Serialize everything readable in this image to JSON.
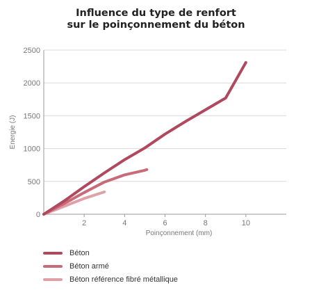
{
  "chart_data": {
    "type": "line",
    "title_lines": [
      "Influence du type de renfort",
      "sur le poinçonnement du béton"
    ],
    "xlabel": "Poinçonnement (mm)",
    "ylabel": "Energie (J)",
    "xlim": [
      0,
      12
    ],
    "ylim": [
      0,
      2500
    ],
    "xticks": [
      2,
      4,
      6,
      8,
      10
    ],
    "yticks": [
      0,
      500,
      1000,
      1500,
      2000,
      2500
    ],
    "grid": {
      "horizontal": true,
      "vertical": false
    },
    "legend_position": "bottom-left",
    "series": [
      {
        "name": "Béton",
        "color": "#b0495e",
        "points": [
          [
            0,
            0
          ],
          [
            1,
            200
          ],
          [
            2,
            420
          ],
          [
            3,
            630
          ],
          [
            4,
            830
          ],
          [
            5,
            1010
          ],
          [
            6,
            1220
          ],
          [
            7,
            1410
          ],
          [
            8,
            1590
          ],
          [
            9,
            1770
          ],
          [
            10,
            2310
          ]
        ]
      },
      {
        "name": "Béton armé",
        "color": "#c86a78",
        "points": [
          [
            0,
            0
          ],
          [
            1,
            160
          ],
          [
            2,
            330
          ],
          [
            3,
            490
          ],
          [
            4,
            600
          ],
          [
            5,
            670
          ],
          [
            5.1,
            680
          ]
        ]
      },
      {
        "name": "Béton référence fibré métallique",
        "color": "#dfa1a6",
        "points": [
          [
            0,
            0
          ],
          [
            1,
            120
          ],
          [
            2,
            240
          ],
          [
            3,
            340
          ]
        ]
      }
    ]
  }
}
